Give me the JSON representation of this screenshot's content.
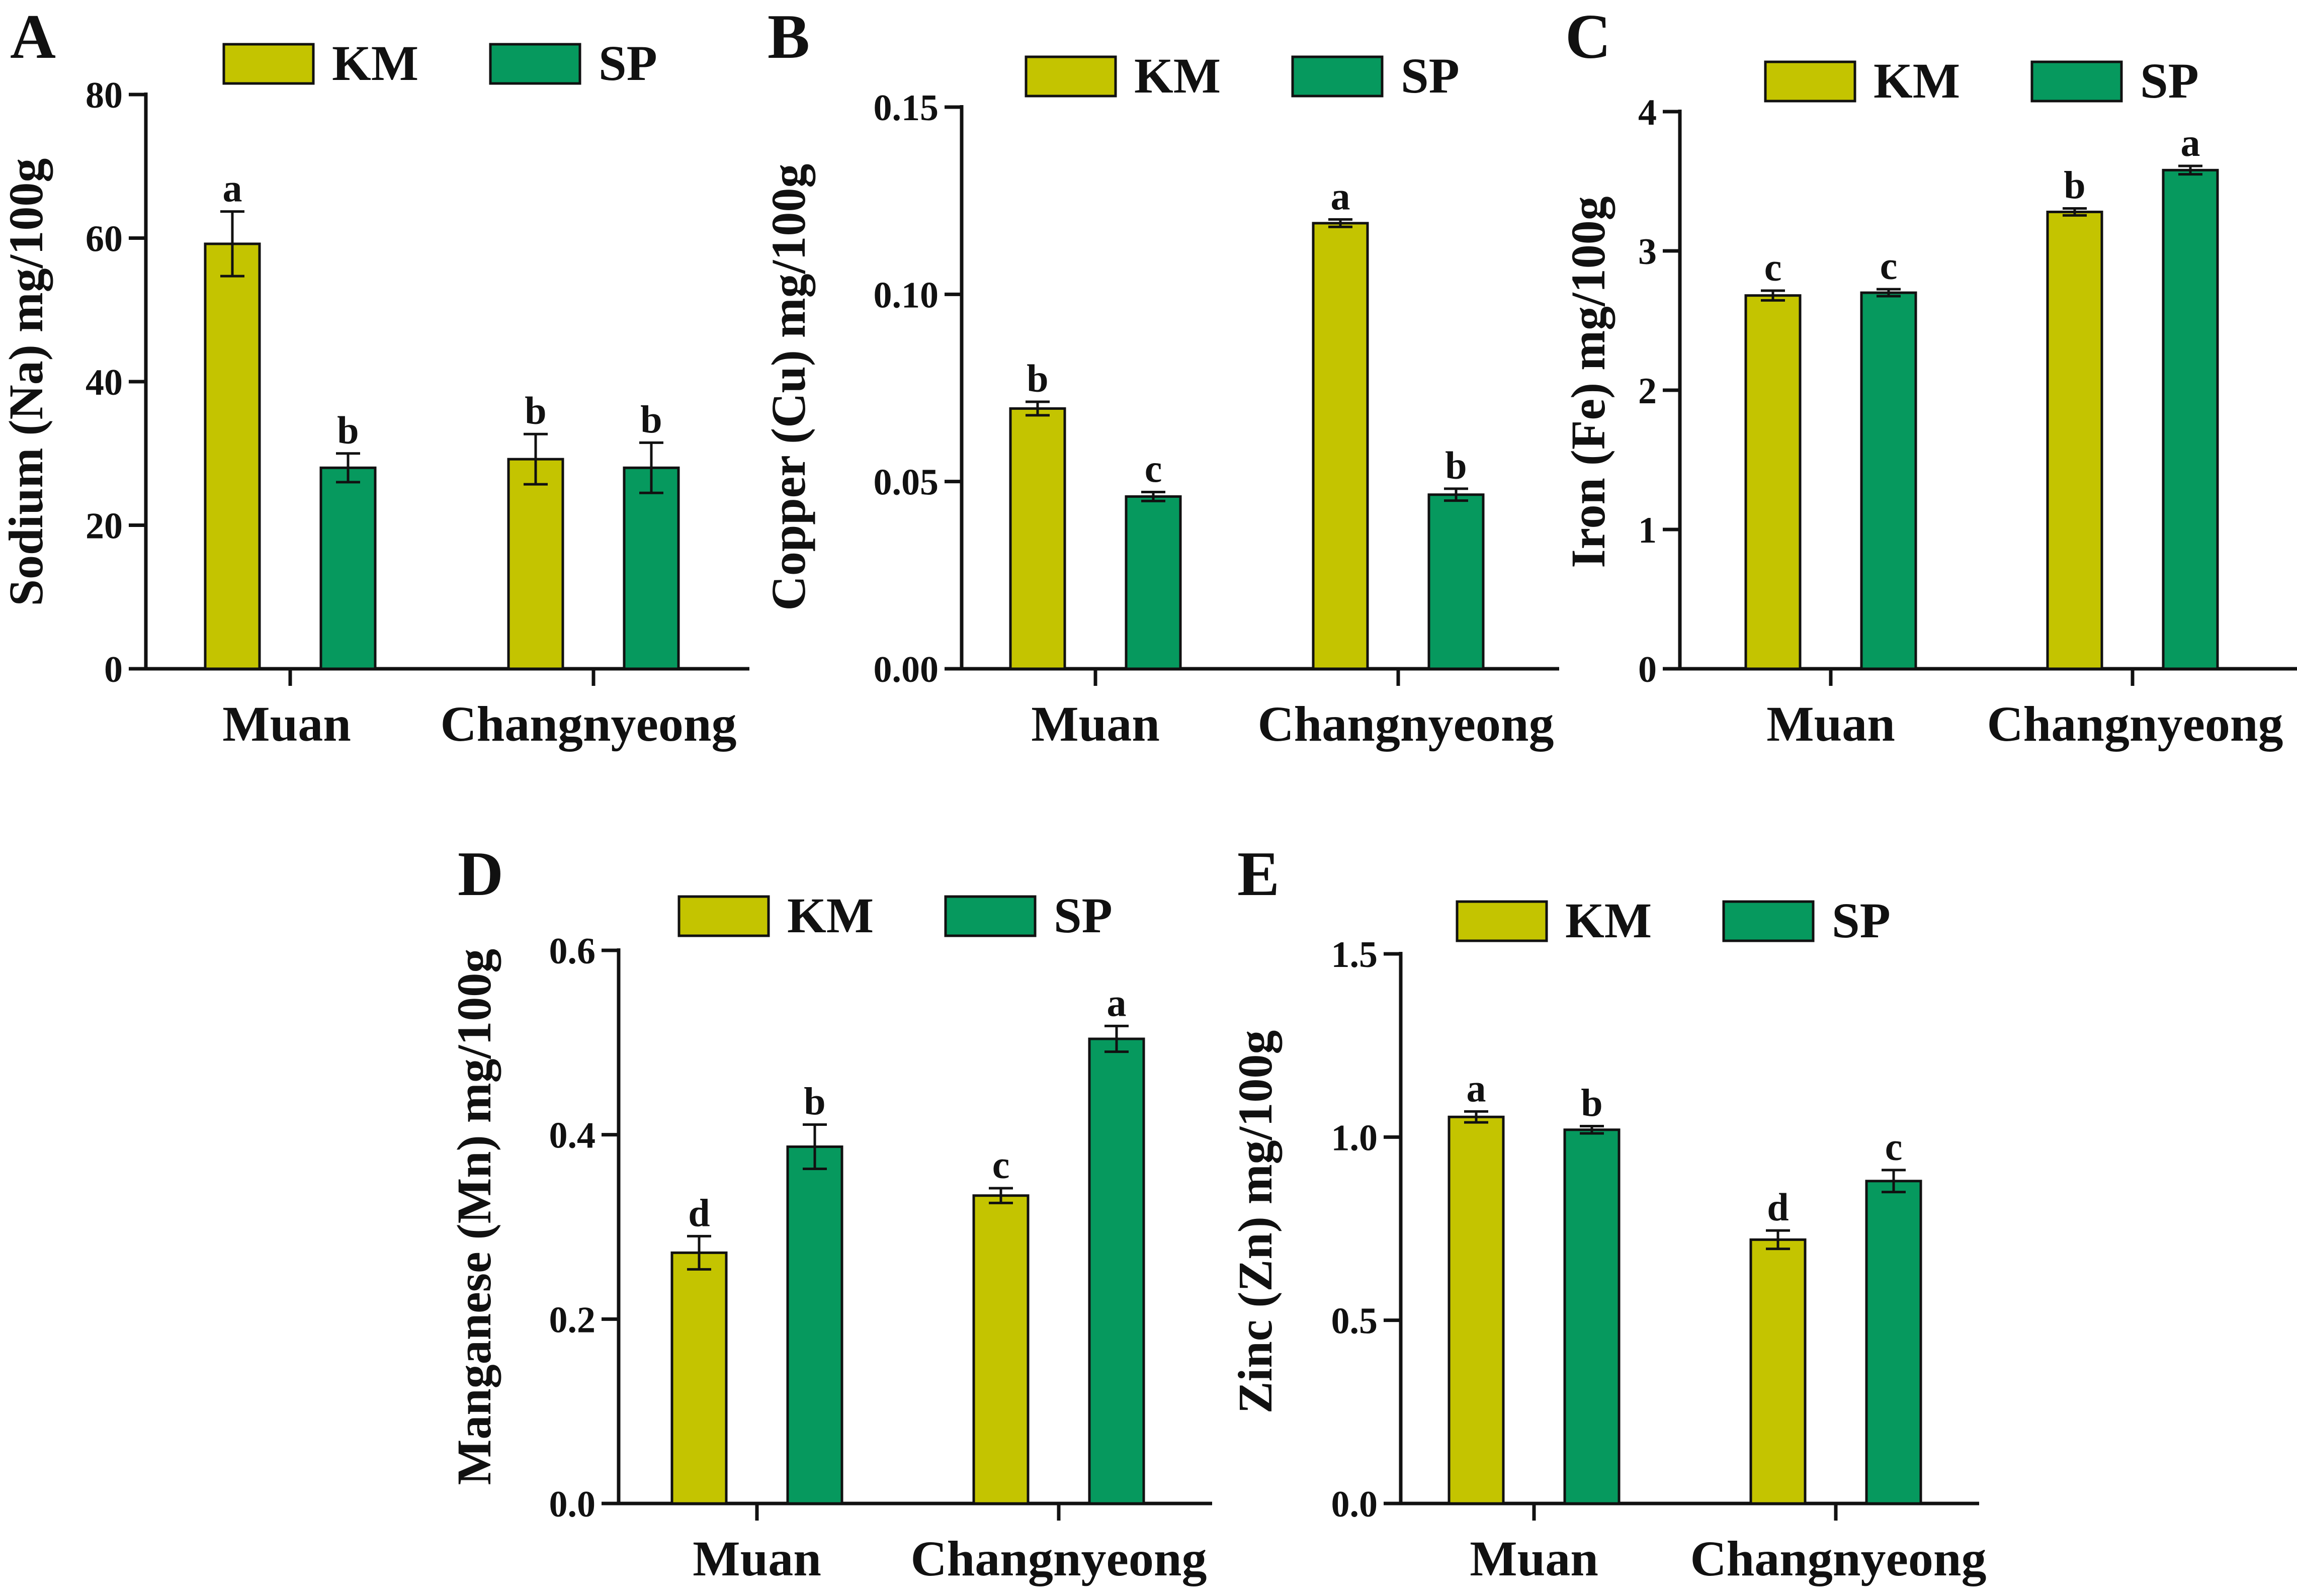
{
  "chart_data": [
    {
      "panel": "A",
      "type": "bar",
      "ylabel": "Sodium (Na) mg/100g",
      "categories": [
        "Muan",
        "Changnyeong"
      ],
      "ylim": [
        0,
        80
      ],
      "yticks": [
        0,
        20,
        40,
        60,
        80
      ],
      "tick_labels": [
        "0",
        "20",
        "40",
        "60",
        "80"
      ],
      "legend": [
        "KM",
        "SP"
      ],
      "series": [
        {
          "name": "KM",
          "color": "#C4C400",
          "values": [
            59.2,
            29.2
          ],
          "errors": [
            4.5,
            3.5
          ],
          "letters": [
            "a",
            "b"
          ]
        },
        {
          "name": "SP",
          "color": "#06995E",
          "values": [
            28.0,
            28.0
          ],
          "errors": [
            2.0,
            3.5
          ],
          "letters": [
            "b",
            "b"
          ]
        }
      ]
    },
    {
      "panel": "B",
      "type": "bar",
      "ylabel": "Copper (Cu) mg/100g",
      "categories": [
        "Muan",
        "Changnyeong"
      ],
      "ylim": [
        0,
        0.15
      ],
      "yticks": [
        0,
        0.05,
        0.1,
        0.15
      ],
      "tick_labels": [
        "0.00",
        "0.05",
        "0.10",
        "0.15"
      ],
      "legend": [
        "KM",
        "SP"
      ],
      "series": [
        {
          "name": "KM",
          "color": "#C4C400",
          "values": [
            0.0695,
            0.119
          ],
          "errors": [
            0.0018,
            0.001
          ],
          "letters": [
            "b",
            "a"
          ]
        },
        {
          "name": "SP",
          "color": "#06995E",
          "values": [
            0.046,
            0.0465
          ],
          "errors": [
            0.0012,
            0.0016
          ],
          "letters": [
            "c",
            "b"
          ]
        }
      ]
    },
    {
      "panel": "C",
      "type": "bar",
      "ylabel": "Iron (Fe) mg/100g",
      "categories": [
        "Muan",
        "Changnyeong"
      ],
      "ylim": [
        0,
        4
      ],
      "yticks": [
        0,
        1,
        2,
        3,
        4
      ],
      "tick_labels": [
        "0",
        "1",
        "2",
        "3",
        "4"
      ],
      "legend": [
        "KM",
        "SP"
      ],
      "series": [
        {
          "name": "KM",
          "color": "#C4C400",
          "values": [
            2.68,
            3.28
          ],
          "errors": [
            0.035,
            0.025
          ],
          "letters": [
            "c",
            "b"
          ]
        },
        {
          "name": "SP",
          "color": "#06995E",
          "values": [
            2.7,
            3.58
          ],
          "errors": [
            0.025,
            0.03
          ],
          "letters": [
            "c",
            "a"
          ]
        }
      ]
    },
    {
      "panel": "D",
      "type": "bar",
      "ylabel": "Manganese (Mn) mg/100g",
      "categories": [
        "Muan",
        "Changnyeong"
      ],
      "ylim": [
        0,
        0.6
      ],
      "yticks": [
        0,
        0.2,
        0.4,
        0.6
      ],
      "tick_labels": [
        "0.0",
        "0.2",
        "0.4",
        "0.6"
      ],
      "legend": [
        "KM",
        "SP"
      ],
      "series": [
        {
          "name": "KM",
          "color": "#C4C400",
          "values": [
            0.272,
            0.334
          ],
          "errors": [
            0.018,
            0.008
          ],
          "letters": [
            "d",
            "c"
          ]
        },
        {
          "name": "SP",
          "color": "#06995E",
          "values": [
            0.387,
            0.504
          ],
          "errors": [
            0.024,
            0.014
          ],
          "letters": [
            "b",
            "a"
          ]
        }
      ]
    },
    {
      "panel": "E",
      "type": "bar",
      "ylabel": "Zinc (Zn) mg/100g",
      "categories": [
        "Muan",
        "Changnyeong"
      ],
      "ylim": [
        0,
        1.5
      ],
      "yticks": [
        0,
        0.5,
        1,
        1.5
      ],
      "tick_labels": [
        "0.0",
        "0.5",
        "1.0",
        "1.5"
      ],
      "legend": [
        "KM",
        "SP"
      ],
      "series": [
        {
          "name": "KM",
          "color": "#C4C400",
          "values": [
            1.055,
            0.72
          ],
          "errors": [
            0.015,
            0.025
          ],
          "letters": [
            "a",
            "d"
          ]
        },
        {
          "name": "SP",
          "color": "#06995E",
          "values": [
            1.02,
            0.88
          ],
          "errors": [
            0.01,
            0.03
          ],
          "letters": [
            "b",
            "c"
          ]
        }
      ]
    }
  ]
}
